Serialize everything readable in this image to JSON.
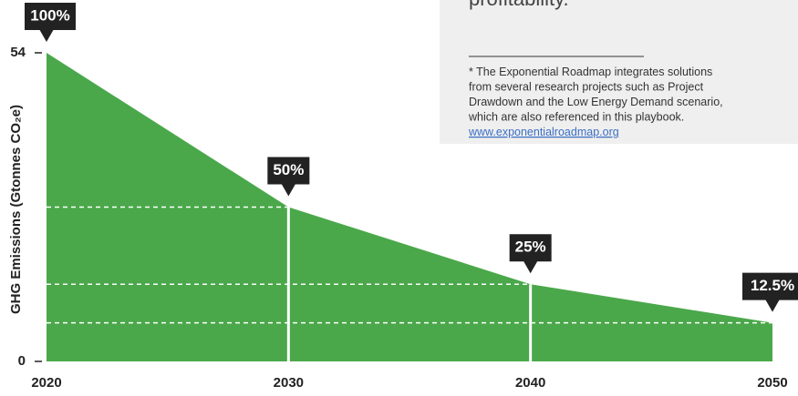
{
  "chart_data": {
    "type": "area",
    "ylabel": "GHG Emissions (Gtonnes CO₂e)",
    "x": [
      2020,
      2030,
      2040,
      2050
    ],
    "values": [
      54,
      27,
      13.5,
      6.75
    ],
    "annotations": [
      "100%",
      "50%",
      "25%",
      "12.5%"
    ],
    "color": "#4aa84a",
    "xlim": [
      2020,
      2050
    ],
    "xticks": [
      2020,
      2030,
      2040,
      2050
    ],
    "ylim": [
      0,
      54
    ],
    "yticks": [
      0,
      54
    ]
  },
  "sidebar": {
    "heading": "profitability.",
    "footnote": [
      "*   The Exponential Roadmap integrates solutions",
      "from several research projects such as Project",
      "Drawdown and the Low Energy Demand scenario,",
      "which are also referenced in this playbook."
    ],
    "link": "www.exponentialroadmap.org"
  }
}
